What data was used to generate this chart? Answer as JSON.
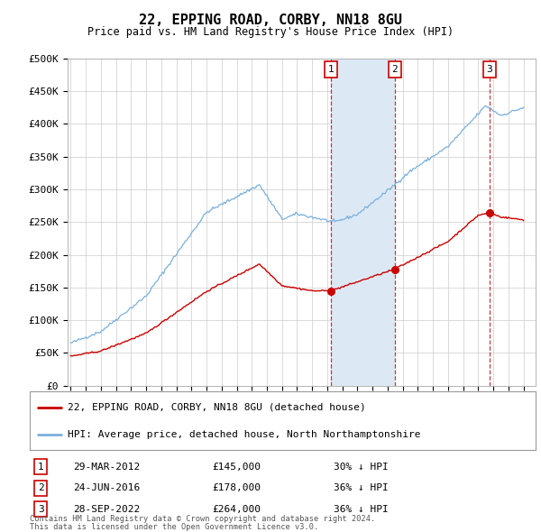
{
  "title": "22, EPPING ROAD, CORBY, NN18 8GU",
  "subtitle": "Price paid vs. HM Land Registry's House Price Index (HPI)",
  "ylabel_ticks": [
    "£0",
    "£50K",
    "£100K",
    "£150K",
    "£200K",
    "£250K",
    "£300K",
    "£350K",
    "£400K",
    "£450K",
    "£500K"
  ],
  "ytick_values": [
    0,
    50000,
    100000,
    150000,
    200000,
    250000,
    300000,
    350000,
    400000,
    450000,
    500000
  ],
  "ylim": [
    0,
    500000
  ],
  "hpi_color": "#7ab0de",
  "price_color": "#cc0000",
  "background_color": "#ffffff",
  "grid_color": "#cccccc",
  "shade_color": "#dce9f5",
  "sale_events": [
    {
      "label": "1",
      "date_year": 2012.23,
      "price": 145000,
      "date_str": "29-MAR-2012",
      "price_str": "£145,000",
      "pct_str": "30% ↓ HPI"
    },
    {
      "label": "2",
      "date_year": 2016.48,
      "price": 178000,
      "date_str": "24-JUN-2016",
      "price_str": "£178,000",
      "pct_str": "36% ↓ HPI"
    },
    {
      "label": "3",
      "date_year": 2022.74,
      "price": 264000,
      "date_str": "28-SEP-2022",
      "price_str": "£264,000",
      "pct_str": "36% ↓ HPI"
    }
  ],
  "legend_line1": "22, EPPING ROAD, CORBY, NN18 8GU (detached house)",
  "legend_line2": "HPI: Average price, detached house, North Northamptonshire",
  "footer1": "Contains HM Land Registry data © Crown copyright and database right 2024.",
  "footer2": "This data is licensed under the Open Government Licence v3.0."
}
